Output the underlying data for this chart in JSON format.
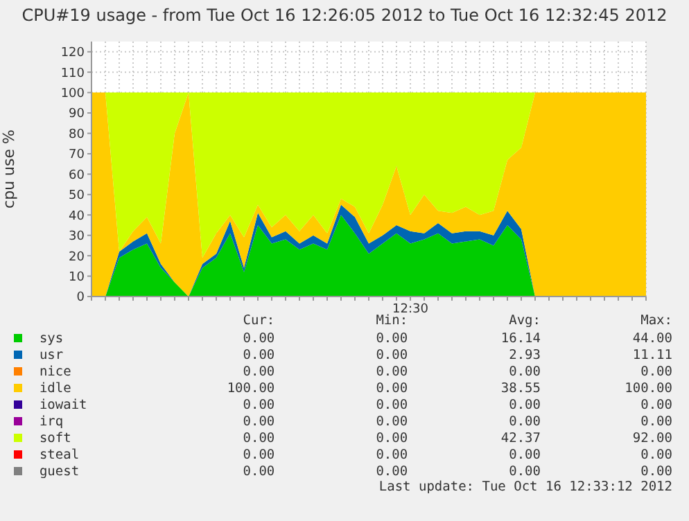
{
  "chart_data": {
    "type": "area",
    "stacked": true,
    "title": "CPU#19 usage - from Tue Oct 16 12:26:05 2012 to Tue Oct 16 12:32:45 2012",
    "ylabel": "cpu use %",
    "categories": [
      null,
      null,
      null,
      null,
      null,
      null,
      null,
      null,
      null,
      null,
      null,
      null,
      null,
      null,
      null,
      null,
      null,
      null,
      null,
      null,
      null,
      null,
      null,
      "12:30",
      null,
      null,
      null,
      null,
      null,
      null,
      null,
      null,
      null,
      null,
      null,
      null,
      null,
      null,
      null,
      null,
      null
    ],
    "ylim": [
      0,
      125
    ],
    "yticks": [
      0,
      10,
      20,
      30,
      40,
      50,
      60,
      70,
      80,
      90,
      100,
      110,
      120
    ],
    "grid": true,
    "legend": "bottom",
    "series": [
      {
        "name": "sys",
        "color": "#00cc00",
        "values": [
          0,
          0,
          19,
          23,
          26,
          14,
          7,
          0,
          14,
          19,
          31,
          12,
          35,
          26,
          28,
          23,
          26,
          23,
          40,
          31,
          21,
          26,
          31,
          26,
          28,
          31,
          26,
          27,
          28,
          25,
          35,
          28,
          0,
          0,
          0,
          0,
          0,
          0,
          0,
          0,
          0
        ]
      },
      {
        "name": "usr",
        "color": "#0066b3",
        "values": [
          0,
          0,
          3,
          4,
          5,
          2,
          0,
          0,
          2,
          2,
          6,
          2,
          6,
          3,
          4,
          3,
          4,
          3,
          5,
          8,
          5,
          4,
          4,
          6,
          3,
          5,
          5,
          5,
          4,
          5,
          7,
          5,
          0,
          0,
          0,
          0,
          0,
          0,
          0,
          0,
          0
        ]
      },
      {
        "name": "nice",
        "color": "#ff8000",
        "values": [
          null,
          null,
          null,
          null,
          null,
          null,
          null,
          null,
          null,
          null,
          null,
          null,
          null,
          null,
          null,
          null,
          null,
          null,
          null,
          null,
          null,
          null,
          null,
          null,
          null,
          null,
          null,
          null,
          null,
          null,
          null,
          null,
          null,
          null,
          null,
          null,
          null,
          null,
          null,
          null,
          null
        ]
      },
      {
        "name": "idle",
        "color": "#ffcc00",
        "values": [
          100,
          100,
          0,
          5,
          8,
          10,
          73,
          100,
          3,
          10,
          3,
          15,
          4,
          5,
          8,
          6,
          10,
          5,
          3,
          5,
          5,
          15,
          29,
          8,
          19,
          6,
          10,
          12,
          8,
          12,
          25,
          40,
          100,
          100,
          100,
          100,
          100,
          100,
          100,
          100,
          100
        ]
      },
      {
        "name": "iowait",
        "color": "#330099",
        "values": [
          null,
          null,
          null,
          null,
          null,
          null,
          null,
          null,
          null,
          null,
          null,
          null,
          null,
          null,
          null,
          null,
          null,
          null,
          null,
          null,
          null,
          null,
          null,
          null,
          null,
          null,
          null,
          null,
          null,
          null,
          null,
          null,
          null,
          null,
          null,
          null,
          null,
          null,
          null,
          null,
          null
        ]
      },
      {
        "name": "irq",
        "color": "#990099",
        "values": [
          null,
          null,
          null,
          null,
          null,
          null,
          null,
          null,
          null,
          null,
          null,
          null,
          null,
          null,
          null,
          null,
          null,
          null,
          null,
          null,
          null,
          null,
          null,
          null,
          null,
          null,
          null,
          null,
          null,
          null,
          null,
          null,
          null,
          null,
          null,
          null,
          null,
          null,
          null,
          null,
          null
        ]
      },
      {
        "name": "soft",
        "color": "#ccff00",
        "values": [
          0,
          0,
          78,
          68,
          61,
          74,
          20,
          0,
          81,
          69,
          60,
          71,
          55,
          66,
          60,
          68,
          60,
          69,
          52,
          56,
          69,
          55,
          36,
          60,
          50,
          58,
          59,
          56,
          60,
          58,
          33,
          27,
          0,
          0,
          0,
          0,
          0,
          0,
          0,
          0,
          0
        ]
      },
      {
        "name": "steal",
        "color": "#ff0000",
        "values": [
          null,
          null,
          null,
          null,
          null,
          null,
          null,
          null,
          null,
          null,
          null,
          null,
          null,
          null,
          null,
          null,
          null,
          null,
          null,
          null,
          null,
          null,
          null,
          null,
          null,
          null,
          null,
          null,
          null,
          null,
          null,
          null,
          null,
          null,
          null,
          null,
          null,
          null,
          null,
          null,
          null
        ]
      },
      {
        "name": "guest",
        "color": "#808080",
        "values": [
          null,
          null,
          null,
          null,
          null,
          null,
          null,
          null,
          null,
          null,
          null,
          null,
          null,
          null,
          null,
          null,
          null,
          null,
          null,
          null,
          null,
          null,
          null,
          null,
          null,
          null,
          null,
          null,
          null,
          null,
          null,
          null,
          null,
          null,
          null,
          null,
          null,
          null,
          null,
          null,
          null
        ]
      }
    ],
    "annotations": [
      "Cur:",
      "Min:",
      "Avg:",
      "Max:",
      "0.00",
      "0.00",
      "16.14",
      "44.00",
      "0.00",
      "0.00",
      "2.93",
      "11.11",
      "0.00",
      "0.00",
      "0.00",
      "0.00",
      "100.00",
      "0.00",
      "38.55",
      "100.00",
      "0.00",
      "0.00",
      "0.00",
      "0.00",
      "0.00",
      "0.00",
      "0.00",
      "0.00",
      "0.00",
      "0.00",
      "42.37",
      "92.00",
      "0.00",
      "0.00",
      "0.00",
      "0.00",
      "0.00",
      "0.00",
      "0.00",
      "0.00",
      "Last update: Tue Oct 16 12:33:12 2012"
    ]
  }
}
